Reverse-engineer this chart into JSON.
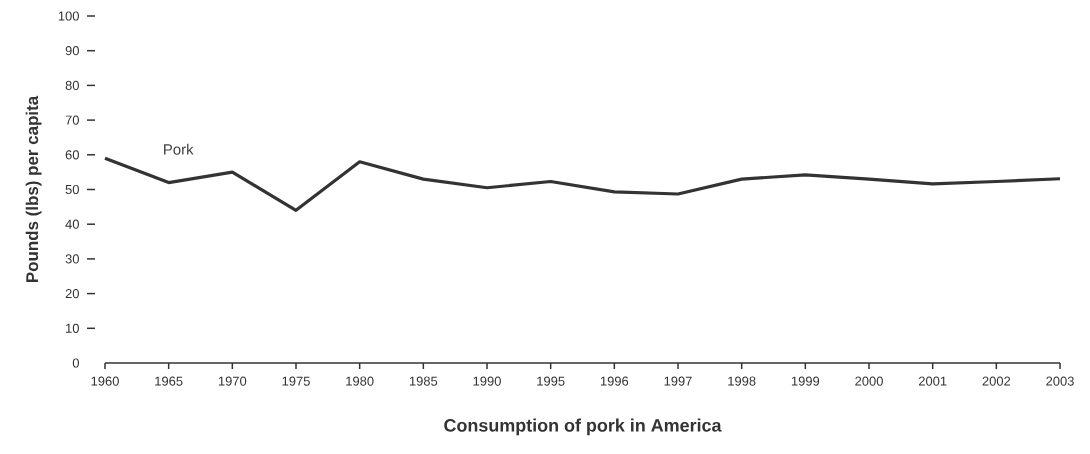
{
  "chart_data": {
    "type": "line",
    "title": "Consumption of pork in America",
    "ylabel": "Pounds (lbs) per capita",
    "categories": [
      "1960",
      "1965",
      "1970",
      "1975",
      "1980",
      "1985",
      "1990",
      "1995",
      "1996",
      "1997",
      "1998",
      "1999",
      "2000",
      "2001",
      "2002",
      "2003"
    ],
    "series": [
      {
        "name": "Pork",
        "color": "#333333",
        "values": [
          59,
          52,
          55,
          44,
          58,
          53,
          50.5,
          52.3,
          49.3,
          48.7,
          53,
          54.2,
          53,
          51.6,
          52.3,
          53.1
        ]
      }
    ],
    "ylim": [
      0,
      100
    ],
    "yticks": [
      0,
      10,
      20,
      30,
      40,
      50,
      60,
      70,
      80,
      90,
      100
    ],
    "grid": false,
    "legend": false,
    "marker": "none",
    "line_style": "solid"
  }
}
